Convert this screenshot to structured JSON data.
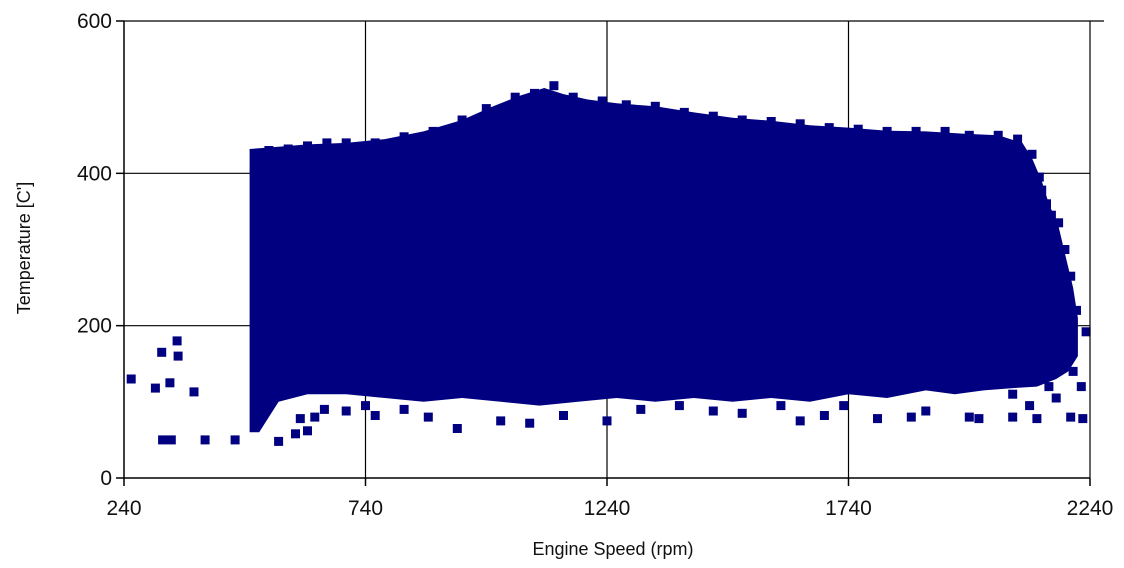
{
  "chart_data": {
    "type": "scatter",
    "title": "",
    "xlabel": "Engine Speed (rpm)",
    "ylabel": "Temperature [C']",
    "xlim": [
      240,
      2240
    ],
    "ylim": [
      0,
      600
    ],
    "x_ticks": [
      "240",
      "740",
      "1240",
      "1740",
      "2240"
    ],
    "y_ticks": [
      "0",
      "200",
      "400",
      "600"
    ],
    "grid": true,
    "legend": "none",
    "marker": "square",
    "marker_color": "#000080",
    "series": [
      {
        "points": [
          [
            255,
            130
          ],
          [
            305,
            118
          ],
          [
            318,
            165
          ],
          [
            335,
            125
          ],
          [
            350,
            180
          ],
          [
            352,
            160
          ],
          [
            385,
            113
          ],
          [
            320,
            50
          ],
          [
            338,
            50
          ],
          [
            408,
            50
          ],
          [
            470,
            50
          ],
          [
            520,
            195
          ],
          [
            560,
            48
          ],
          [
            595,
            58
          ],
          [
            605,
            78
          ],
          [
            620,
            62
          ],
          [
            635,
            80
          ],
          [
            655,
            90
          ],
          [
            700,
            88
          ],
          [
            740,
            95
          ],
          [
            760,
            82
          ],
          [
            820,
            90
          ],
          [
            870,
            80
          ],
          [
            930,
            65
          ],
          [
            1020,
            75
          ],
          [
            1080,
            72
          ],
          [
            1150,
            82
          ],
          [
            1240,
            75
          ],
          [
            1310,
            90
          ],
          [
            1390,
            95
          ],
          [
            1460,
            88
          ],
          [
            1520,
            85
          ],
          [
            1600,
            95
          ],
          [
            1640,
            75
          ],
          [
            1690,
            82
          ],
          [
            1730,
            95
          ],
          [
            1800,
            78
          ],
          [
            1870,
            80
          ],
          [
            1900,
            88
          ],
          [
            1990,
            80
          ],
          [
            2010,
            78
          ],
          [
            2080,
            80
          ],
          [
            2130,
            78
          ],
          [
            2200,
            80
          ],
          [
            2225,
            78
          ],
          [
            2222,
            120
          ],
          [
            2232,
            192
          ],
          [
            2188,
            162
          ],
          [
            2205,
            140
          ],
          [
            2170,
            105
          ],
          [
            2155,
            120
          ],
          [
            2115,
            95
          ],
          [
            2080,
            110
          ],
          [
            540,
            430
          ],
          [
            580,
            432
          ],
          [
            620,
            436
          ],
          [
            660,
            440
          ],
          [
            700,
            440
          ],
          [
            760,
            440
          ],
          [
            820,
            448
          ],
          [
            880,
            455
          ],
          [
            940,
            470
          ],
          [
            990,
            485
          ],
          [
            1050,
            500
          ],
          [
            1090,
            505
          ],
          [
            1130,
            515
          ],
          [
            1170,
            500
          ],
          [
            1230,
            495
          ],
          [
            1280,
            490
          ],
          [
            1340,
            488
          ],
          [
            1400,
            480
          ],
          [
            1460,
            475
          ],
          [
            1520,
            470
          ],
          [
            1580,
            468
          ],
          [
            1640,
            465
          ],
          [
            1700,
            460
          ],
          [
            1760,
            458
          ],
          [
            1820,
            455
          ],
          [
            1880,
            455
          ],
          [
            1940,
            455
          ],
          [
            1990,
            450
          ],
          [
            2050,
            450
          ],
          [
            2090,
            445
          ],
          [
            2120,
            425
          ],
          [
            2135,
            395
          ],
          [
            2140,
            378
          ],
          [
            2150,
            360
          ],
          [
            2175,
            335
          ],
          [
            2188,
            300
          ],
          [
            2200,
            265
          ],
          [
            2212,
            220
          ],
          [
            2160,
            345
          ],
          [
            2128,
            320
          ],
          [
            2098,
            285
          ]
        ]
      }
    ]
  }
}
